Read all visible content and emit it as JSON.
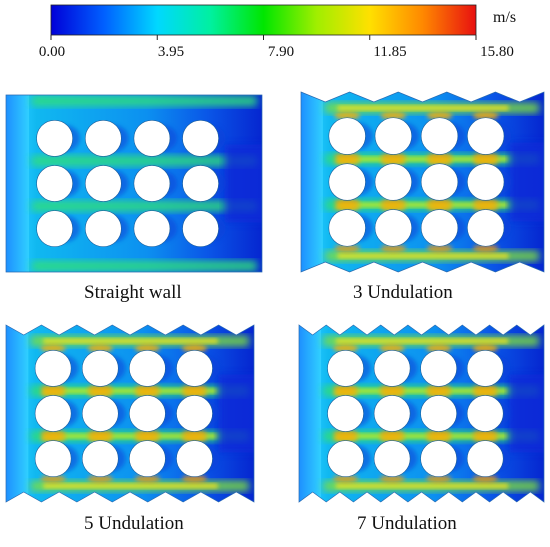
{
  "colorbar": {
    "unit": "m/s",
    "ticks": [
      "0.00",
      "3.95",
      "7.90",
      "11.85",
      "15.80"
    ],
    "min": 0.0,
    "max": 15.8,
    "colors": [
      "#0000d8",
      "#0060ff",
      "#00d8ff",
      "#00f0a0",
      "#00e600",
      "#a0ee00",
      "#ffe000",
      "#ff8800",
      "#e81010"
    ]
  },
  "panels": [
    {
      "label": "Straight wall",
      "undulations": 0
    },
    {
      "label": "3 Undulation",
      "undulations": 3
    },
    {
      "label": "5 Undulation",
      "undulations": 5
    },
    {
      "label": "7 Undulation",
      "undulations": 7
    }
  ],
  "cylinder_grid": {
    "rows": 3,
    "cols": 4
  }
}
